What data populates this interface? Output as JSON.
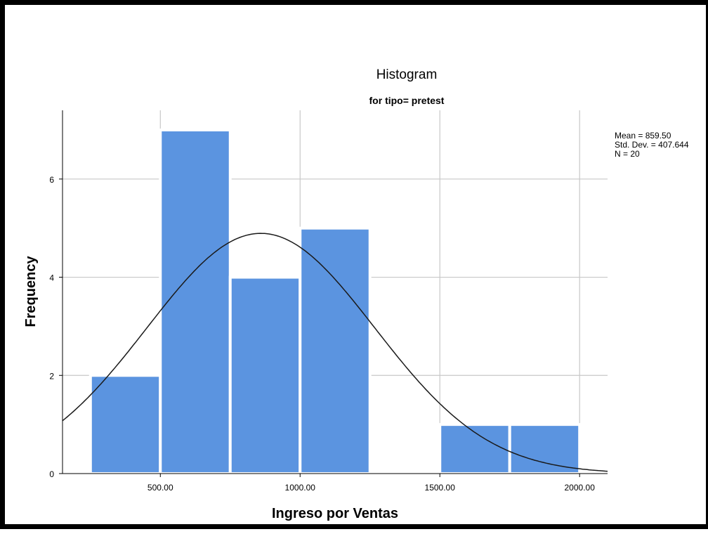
{
  "chart_data": {
    "type": "histogram",
    "title": "Histogram",
    "subtitle": "for tipo= pretest",
    "xlabel": "Ingreso por Ventas",
    "ylabel": "Frequency",
    "xlim": [
      150,
      2100
    ],
    "ylim": [
      0,
      7.4
    ],
    "x_ticks": [
      500,
      1000,
      1500,
      2000
    ],
    "x_tick_labels": [
      "500.00",
      "1000.00",
      "1500.00",
      "2000.00"
    ],
    "y_ticks": [
      0,
      2,
      4,
      6
    ],
    "y_tick_labels": [
      "0",
      "2",
      "4",
      "6"
    ],
    "grid": true,
    "bin_width": 250,
    "bins": [
      {
        "start": 250,
        "end": 500,
        "count": 2
      },
      {
        "start": 500,
        "end": 750,
        "count": 7
      },
      {
        "start": 750,
        "end": 1000,
        "count": 4
      },
      {
        "start": 1000,
        "end": 1250,
        "count": 5
      },
      {
        "start": 1250,
        "end": 1500,
        "count": 0
      },
      {
        "start": 1500,
        "end": 1750,
        "count": 1
      },
      {
        "start": 1750,
        "end": 2000,
        "count": 1
      }
    ],
    "normal_curve": {
      "mean": 859.5,
      "std_dev": 407.644,
      "n": 20
    },
    "stats_lines": [
      "Mean = 859.50",
      "Std. Dev. = 407.644",
      "N = 20"
    ],
    "legend_position": "right",
    "colors": {
      "bar": "#5b94e0",
      "bar_edge": "#ffffff",
      "grid": "#c8c8c8",
      "curve": "#1a1a1a",
      "axis": "#000000"
    }
  }
}
